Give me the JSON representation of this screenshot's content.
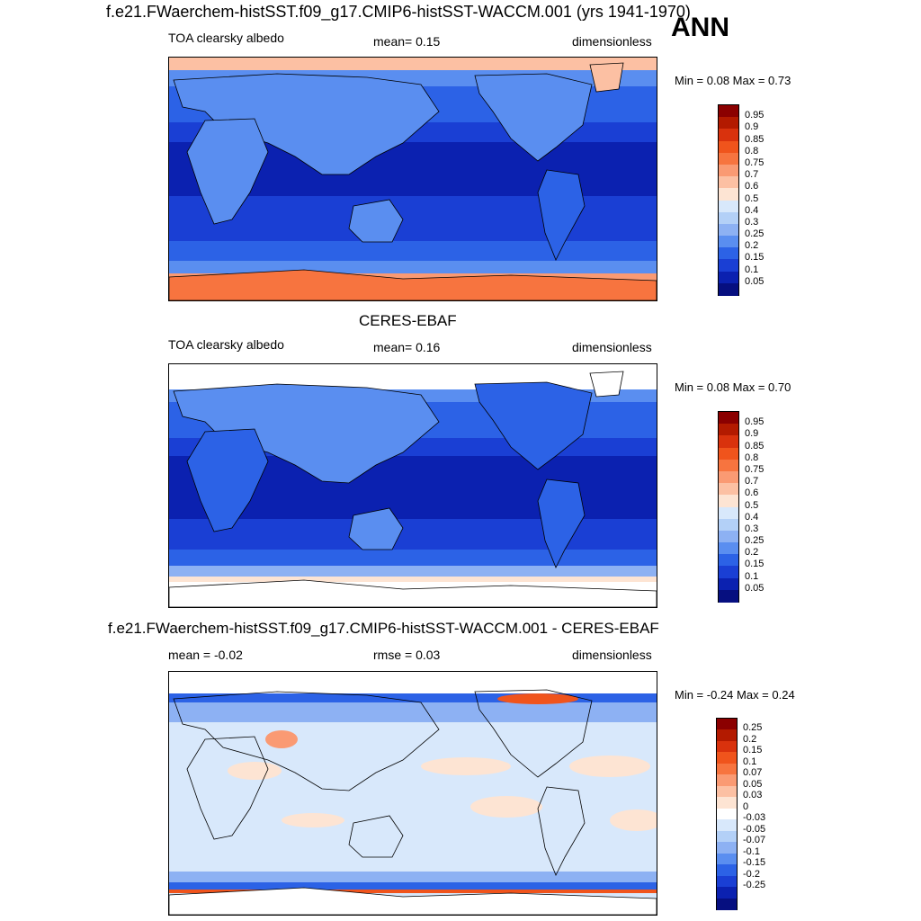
{
  "header": {
    "title": "f.e21.FWaerchem-histSST.f09_g17.CMIP6-histSST-WACCM.001 (yrs 1941-1970)",
    "season": "ANN"
  },
  "panels": [
    {
      "id": "model",
      "variable": "TOA clearsky albedo",
      "stat_text": "mean=  0.15",
      "units": "dimensionless",
      "minmax": "Min =  0.08 Max =  0.73",
      "colorbar_labels": [
        "0.95",
        "0.9",
        "0.85",
        "0.8",
        "0.75",
        "0.7",
        "0.6",
        "0.5",
        "0.4",
        "0.3",
        "0.25",
        "0.2",
        "0.15",
        "0.1",
        "0.05"
      ]
    },
    {
      "id": "obs",
      "title": "CERES-EBAF",
      "variable": "TOA clearsky albedo",
      "stat_text": "mean=  0.16",
      "units": "dimensionless",
      "minmax": "Min =  0.08 Max =  0.70",
      "colorbar_labels": [
        "0.95",
        "0.9",
        "0.85",
        "0.8",
        "0.75",
        "0.7",
        "0.6",
        "0.5",
        "0.4",
        "0.3",
        "0.25",
        "0.2",
        "0.15",
        "0.1",
        "0.05"
      ]
    },
    {
      "id": "diff",
      "title": "f.e21.FWaerchem-histSST.f09_g17.CMIP6-histSST-WACCM.001 - CERES-EBAF",
      "mean_text": "mean =  -0.02",
      "rmse_text": "rmse =  0.03",
      "units": "dimensionless",
      "minmax": "Min =  -0.24 Max =  0.24",
      "colorbar_labels": [
        "0.25",
        "0.2",
        "0.15",
        "0.1",
        "0.07",
        "0.05",
        "0.03",
        "0",
        "-0.03",
        "-0.05",
        "-0.07",
        "-0.1",
        "-0.15",
        "-0.2",
        "-0.25"
      ]
    }
  ],
  "colors": {
    "abs_scale": [
      "#8b0000",
      "#b31a00",
      "#d9320d",
      "#f0541c",
      "#f7743f",
      "#fa9a73",
      "#fcc0a3",
      "#fde4d3",
      "#d8e8fb",
      "#b3d0f7",
      "#8db1f3",
      "#5a8ef0",
      "#2c62e6",
      "#1a3fd4",
      "#0b21b0",
      "#060f80"
    ],
    "diff_scale": [
      "#8b0000",
      "#b31a00",
      "#d9320d",
      "#f0541c",
      "#f7743f",
      "#fa9a73",
      "#fcc0a3",
      "#fde4d3",
      "#ffffff",
      "#d8e8fb",
      "#b3d0f7",
      "#8db1f3",
      "#5a8ef0",
      "#2c62e6",
      "#1a3fd4",
      "#0b21b0",
      "#060f80"
    ]
  }
}
